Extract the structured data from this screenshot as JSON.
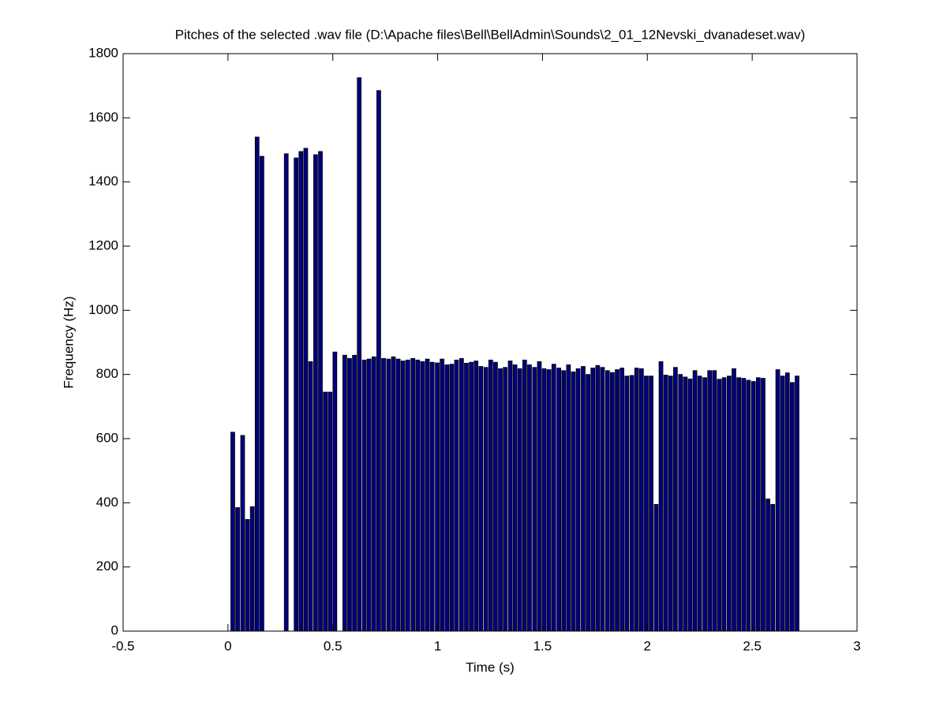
{
  "chart_data": {
    "type": "bar",
    "title": "Pitches of the selected .wav file (D:\\Apache files\\Bell\\BellAdmin\\Sounds\\2_01_12Nevski_dvanadeset.wav)",
    "x_label": "Time (s)",
    "y_label": "Frequency (Hz)",
    "color": "#000080",
    "x": [
      0.023,
      0.046,
      0.07,
      0.093,
      0.116,
      0.139,
      0.162,
      0.186,
      0.209,
      0.232,
      0.255,
      0.278,
      0.302,
      0.325,
      0.348,
      0.371,
      0.394,
      0.418,
      0.441,
      0.464,
      0.487,
      0.51,
      0.534,
      0.557,
      0.58,
      0.603,
      0.626,
      0.65,
      0.673,
      0.696,
      0.719,
      0.742,
      0.766,
      0.789,
      0.812,
      0.835,
      0.858,
      0.882,
      0.905,
      0.928,
      0.951,
      0.974,
      0.998,
      1.021,
      1.044,
      1.067,
      1.09,
      1.114,
      1.137,
      1.16,
      1.183,
      1.206,
      1.23,
      1.253,
      1.276,
      1.299,
      1.322,
      1.346,
      1.369,
      1.392,
      1.415,
      1.438,
      1.462,
      1.485,
      1.508,
      1.531,
      1.554,
      1.578,
      1.601,
      1.624,
      1.647,
      1.67,
      1.694,
      1.717,
      1.74,
      1.763,
      1.786,
      1.81,
      1.833,
      1.856,
      1.879,
      1.902,
      1.926,
      1.949,
      1.972,
      1.995,
      2.018,
      2.042,
      2.065,
      2.088,
      2.111,
      2.134,
      2.158,
      2.181,
      2.204,
      2.227,
      2.25,
      2.274,
      2.297,
      2.32,
      2.343,
      2.366,
      2.39,
      2.413,
      2.436,
      2.459,
      2.482,
      2.506,
      2.529,
      2.552,
      2.575,
      2.598,
      2.622,
      2.645,
      2.668,
      2.691,
      2.714
    ],
    "values": [
      620,
      385,
      610,
      348,
      388,
      1540,
      1480,
      0,
      0,
      0,
      0,
      1488,
      0,
      1475,
      1495,
      1505,
      840,
      1485,
      1495,
      745,
      745,
      870,
      0,
      860,
      850,
      860,
      1725,
      845,
      848,
      855,
      1685,
      850,
      848,
      855,
      848,
      842,
      845,
      850,
      845,
      840,
      848,
      838,
      836,
      848,
      830,
      832,
      845,
      850,
      835,
      838,
      842,
      825,
      822,
      845,
      838,
      818,
      822,
      842,
      830,
      818,
      845,
      830,
      822,
      840,
      818,
      815,
      832,
      820,
      812,
      830,
      808,
      818,
      825,
      800,
      820,
      828,
      822,
      812,
      806,
      815,
      820,
      795,
      797,
      820,
      818,
      795,
      795,
      395,
      840,
      798,
      795,
      822,
      800,
      792,
      786,
      812,
      795,
      790,
      812,
      812,
      785,
      790,
      795,
      818,
      790,
      788,
      782,
      778,
      790,
      788,
      412,
      395,
      815,
      795,
      805,
      775,
      795
    ],
    "xlim": [
      -0.5,
      3
    ],
    "xticks": [
      -0.5,
      0,
      0.5,
      1,
      1.5,
      2,
      2.5,
      3
    ],
    "ylim": [
      0,
      1800
    ],
    "yticks": [
      0,
      200,
      400,
      600,
      800,
      1000,
      1200,
      1400,
      1600,
      1800
    ],
    "bar_width": 0.8
  }
}
